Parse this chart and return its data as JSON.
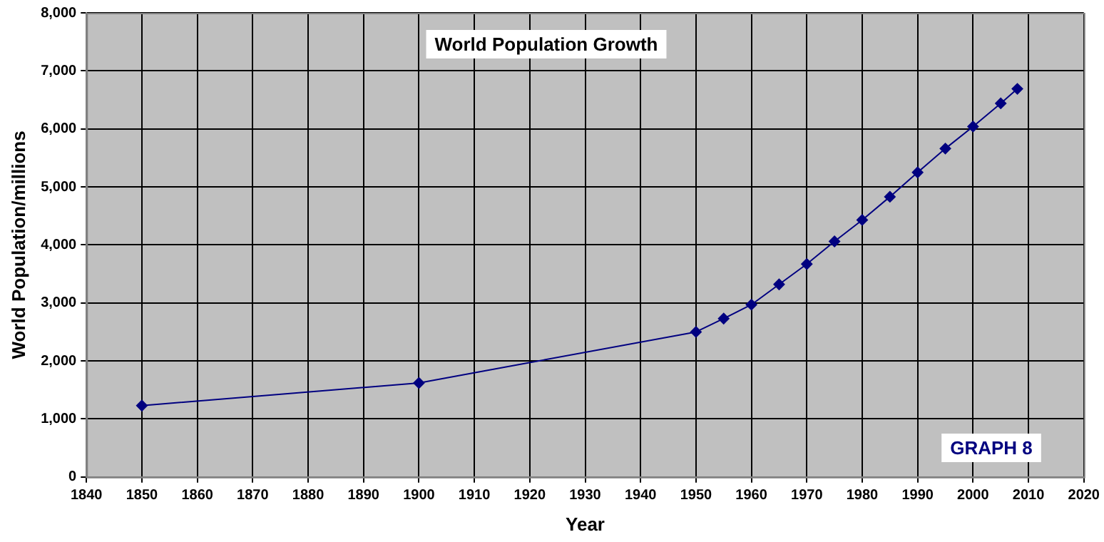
{
  "chart_data": {
    "type": "line",
    "title": "World Population Growth",
    "xlabel": "Year",
    "ylabel": "World Population/millions",
    "x": [
      1850,
      1900,
      1950,
      1955,
      1960,
      1965,
      1970,
      1975,
      1980,
      1985,
      1990,
      1995,
      2000,
      2005,
      2008
    ],
    "series": [
      {
        "color": "#000080",
        "values": [
          1230,
          1620,
          2500,
          2730,
          2970,
          3320,
          3670,
          4060,
          4430,
          4830,
          5250,
          5660,
          6040,
          6440,
          6690
        ]
      }
    ],
    "xlim": [
      1840,
      2020
    ],
    "xticks": [
      1840,
      1850,
      1860,
      1870,
      1880,
      1890,
      1900,
      1910,
      1920,
      1930,
      1940,
      1950,
      1960,
      1970,
      1980,
      1990,
      2000,
      2010,
      2020
    ],
    "ylim": [
      0,
      8000
    ],
    "yticks": [
      0,
      {
        "value": 1000,
        "label": "1,000"
      },
      {
        "value": 2000,
        "label": "2,000"
      },
      {
        "value": 3000,
        "label": "3,000"
      },
      {
        "value": 4000,
        "label": "4,000"
      },
      {
        "value": 5000,
        "label": "5,000"
      },
      {
        "value": 6000,
        "label": "6,000"
      },
      {
        "value": 7000,
        "label": "7,000"
      },
      {
        "value": 8000,
        "label": "8,000"
      }
    ],
    "grid": true,
    "legend": false,
    "marker": "diamond",
    "line_style": "solid",
    "annotations": [
      "GRAPH 8"
    ]
  }
}
